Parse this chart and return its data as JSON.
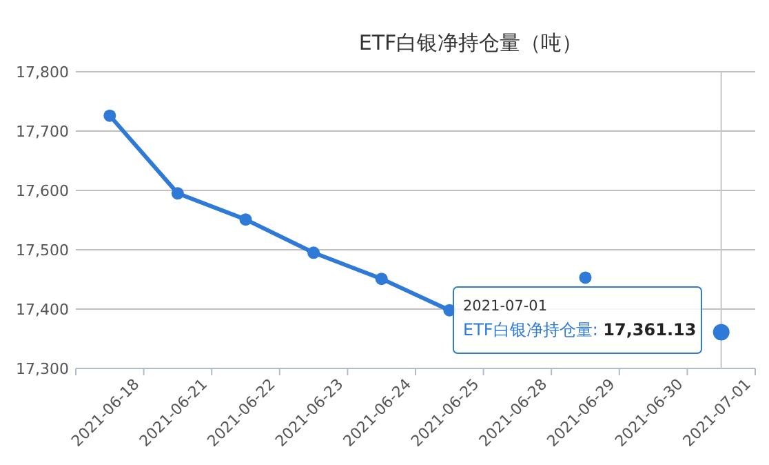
{
  "chart_data": {
    "type": "line",
    "title": "ETF白银净持仓量（吨）",
    "categories": [
      "2021-06-18",
      "2021-06-21",
      "2021-06-22",
      "2021-06-23",
      "2021-06-24",
      "2021-06-25",
      "2021-06-28",
      "2021-06-29",
      "2021-06-30",
      "2021-07-01"
    ],
    "series": [
      {
        "color": "#2f7ad6",
        "values": [
          17726,
          17595,
          17551,
          17495,
          17451,
          17398,
          null,
          17453,
          null,
          17361
        ]
      }
    ],
    "ylim": [
      17300,
      17800
    ],
    "yticks": [
      {
        "value": 17300,
        "label": "17,300"
      },
      {
        "value": 17400,
        "label": "17,400"
      },
      {
        "value": 17500,
        "label": "17,500"
      },
      {
        "value": 17600,
        "label": "17,600"
      },
      {
        "value": 17700,
        "label": "17,700"
      },
      {
        "value": 17800,
        "label": "17,800"
      }
    ],
    "grid": "y",
    "marker": "circle",
    "line_style": "solid",
    "ref_lines": [
      {
        "axis": "x",
        "value": "2021-07-01",
        "color": "#c8c8c8"
      }
    ],
    "annotations": [
      "2021-07-01",
      "ETF白银净持仓量: 17,361.13"
    ]
  }
}
